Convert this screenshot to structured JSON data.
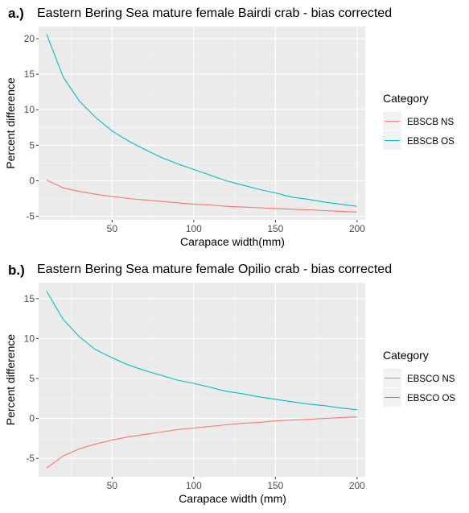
{
  "chart_data": [
    {
      "type": "line",
      "panel_label": "a.)",
      "title": "Eastern Bering Sea mature female Bairdi crab - bias corrected",
      "xlabel": "Carapace width(mm)",
      "ylabel": "Percent difference",
      "xlim": [
        5,
        205
      ],
      "ylim": [
        -5.5,
        21.7
      ],
      "xticks": [
        50,
        100,
        150,
        200
      ],
      "yticks": [
        -5,
        0,
        5,
        10,
        15,
        20
      ],
      "grid": true,
      "legend_title": "Category",
      "legend_position": "right",
      "series": [
        {
          "name": "EBSCB NS",
          "color": "#F8766D",
          "x": [
            10,
            20,
            30,
            40,
            50,
            60,
            70,
            80,
            90,
            100,
            110,
            120,
            130,
            140,
            150,
            160,
            170,
            180,
            190,
            200
          ],
          "y": [
            0.1,
            -1.0,
            -1.5,
            -1.9,
            -2.2,
            -2.5,
            -2.7,
            -2.9,
            -3.1,
            -3.3,
            -3.4,
            -3.6,
            -3.7,
            -3.8,
            -3.9,
            -4.0,
            -4.1,
            -4.2,
            -4.3,
            -4.4
          ]
        },
        {
          "name": "EBSCB OS",
          "color": "#00BFC4",
          "x": [
            10,
            20,
            30,
            40,
            50,
            60,
            70,
            80,
            90,
            100,
            110,
            120,
            130,
            140,
            150,
            160,
            170,
            180,
            190,
            200
          ],
          "y": [
            20.6,
            14.6,
            11.2,
            8.9,
            7.0,
            5.6,
            4.4,
            3.3,
            2.4,
            1.6,
            0.8,
            0.0,
            -0.6,
            -1.2,
            -1.7,
            -2.3,
            -2.6,
            -3.0,
            -3.3,
            -3.6
          ]
        }
      ]
    },
    {
      "type": "line",
      "panel_label": "b.)",
      "title": "Eastern Bering Sea mature female Opilio crab - bias corrected",
      "xlabel": "Carapace width (mm)",
      "ylabel": "Percent difference",
      "xlim": [
        5,
        205
      ],
      "ylim": [
        -7.3,
        17.0
      ],
      "xticks": [
        50,
        100,
        150,
        200
      ],
      "yticks": [
        -5,
        0,
        5,
        10,
        15
      ],
      "grid": true,
      "legend_title": "Category",
      "legend_position": "right",
      "series": [
        {
          "name": "EBSCO NS",
          "color": "#F8766D",
          "x": [
            10,
            20,
            30,
            40,
            50,
            60,
            70,
            80,
            90,
            100,
            110,
            120,
            130,
            140,
            150,
            160,
            170,
            180,
            190,
            200
          ],
          "y": [
            -6.2,
            -4.7,
            -3.8,
            -3.2,
            -2.7,
            -2.3,
            -2.0,
            -1.7,
            -1.4,
            -1.2,
            -1.0,
            -0.8,
            -0.6,
            -0.5,
            -0.3,
            -0.2,
            -0.1,
            0.0,
            0.1,
            0.2
          ]
        },
        {
          "name": "EBSCO OS",
          "color": "#00BFC4",
          "x": [
            10,
            20,
            30,
            40,
            50,
            60,
            70,
            80,
            90,
            100,
            110,
            120,
            130,
            140,
            150,
            160,
            170,
            180,
            190,
            200
          ],
          "y": [
            15.9,
            12.4,
            10.2,
            8.6,
            7.6,
            6.7,
            6.0,
            5.4,
            4.8,
            4.4,
            3.9,
            3.4,
            3.1,
            2.7,
            2.4,
            2.1,
            1.8,
            1.6,
            1.3,
            1.1
          ]
        }
      ]
    }
  ]
}
